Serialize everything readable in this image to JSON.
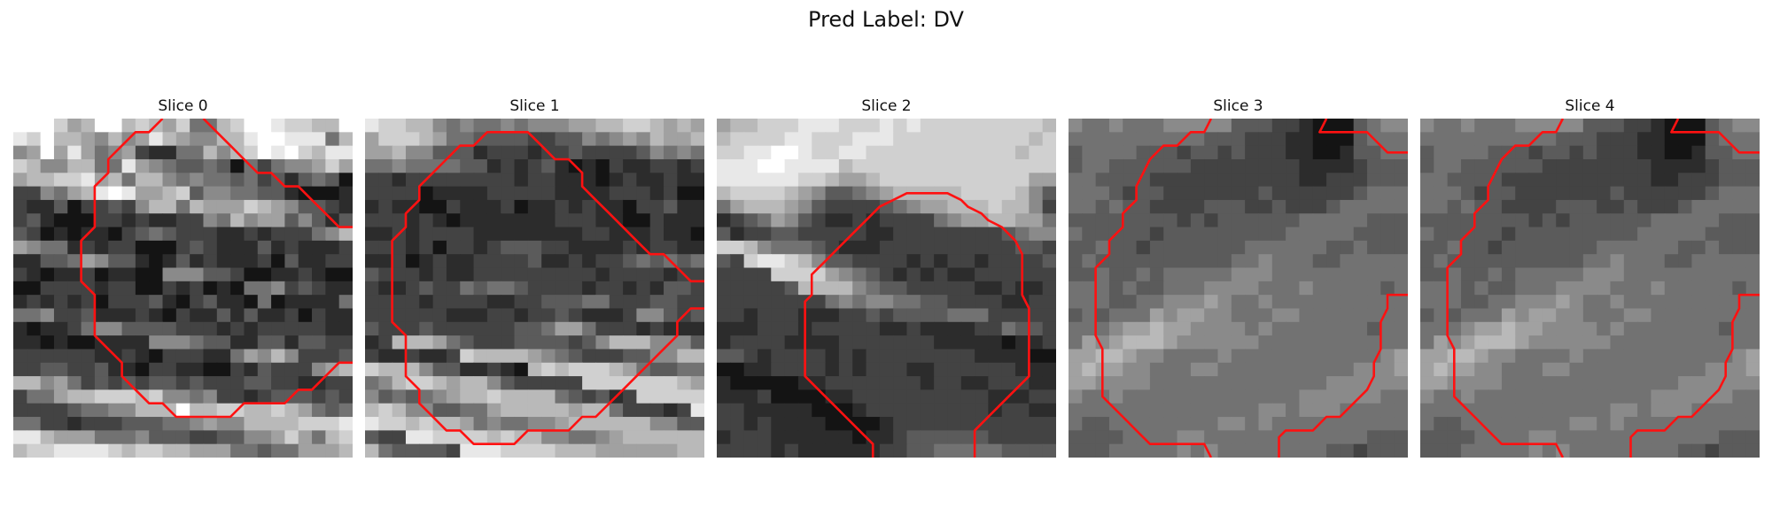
{
  "figure": {
    "title": "Pred Label: DV"
  },
  "contour_color": "#ff1111",
  "grid_size": 25,
  "panels": [
    {
      "title": "Slice 0",
      "contour": [
        [
          [
            10.5,
            -0.5
          ],
          [
            9.5,
            0.5
          ],
          [
            8.5,
            0.5
          ],
          [
            7.5,
            1.5
          ],
          [
            6.5,
            2.5
          ],
          [
            6.5,
            3.5
          ],
          [
            5.5,
            4.5
          ],
          [
            5.5,
            7.5
          ],
          [
            4.5,
            8.5
          ],
          [
            4.5,
            11.5
          ],
          [
            5.5,
            12.5
          ],
          [
            5.5,
            15.5
          ],
          [
            6.5,
            16.5
          ],
          [
            7.5,
            17.5
          ],
          [
            7.5,
            18.5
          ],
          [
            8.5,
            19.5
          ],
          [
            9.5,
            20.5
          ],
          [
            10.5,
            20.5
          ],
          [
            11.5,
            21.5
          ],
          [
            15.5,
            21.5
          ],
          [
            16.5,
            20.5
          ],
          [
            19.5,
            20.5
          ],
          [
            20.5,
            19.5
          ],
          [
            21.5,
            19.5
          ],
          [
            22.5,
            18.5
          ],
          [
            23.5,
            17.5
          ],
          [
            24.5,
            17.5
          ]
        ],
        [
          [
            13.5,
            -0.5
          ],
          [
            14.5,
            0.5
          ],
          [
            15.5,
            1.5
          ],
          [
            16.5,
            2.5
          ],
          [
            17.5,
            3.5
          ],
          [
            18.5,
            3.5
          ],
          [
            19.5,
            4.5
          ],
          [
            20.5,
            4.5
          ],
          [
            21.5,
            5.5
          ],
          [
            22.5,
            6.5
          ],
          [
            23.5,
            7.5
          ],
          [
            24.5,
            7.5
          ]
        ]
      ],
      "pixels": "LKKIGHKKHIHGIEEHIKLJIIHHKJIMHHGFHFGJHGFFHHJLLJJJEHFGKGJGEFGCBBEEHFHILJKIHJJIHFFHHEEJGFEDDEDAECEFFGIGGHHIIJGHEHHFEFEEDECDBDEDACCFEGHJKJGGHIDFFEEDDBAAABCBBDACCDCFHHEHGGGIHGFDDCBCDBAAACCBCBBCCFEHFGGDFDBDDCABABBACDEDCCCBBCBCCCEFHGFEEBCBCCAAACDCBBBDBCBBBCBBDDEGFDDBABDBCBBBCADBBCCCBABBCABBAAFFFDDCAABBCBAAAACCCCBCCAACBCABAEEFCDCBBBCBCBCACCCDBACDBBAEABBBBEEEFCCDBBBCBACBBDBDBBCACBBBABBCEFFDDDDCCCBCBCCCCCBBBBABAABBBBFFFEDDBBDDBDDCCCCCCCCBBCBACCCBBEGFHFCCCDCCDDCCDBBACCBBAACBDCCCFGHHHFGECDCDCDDCDCCCDDCCBBCCCEEGHHIIIHIFFEFCCBCDDDCDCCCCCDEEFFHHHKHHIIHHIHGEDEEECCBCCCDDDEEFGFFHHHHIIIJJJHGGGEEEFDDDCCDDFFGIGEHIHIIJJJJIHIIHHGGGEEDEEGGGHIHHHHJJKJJJJIHHHGHHGHGGEEGFGHHJHIHJJJJJJIIHIHHHIHGGFFFEGGHHHHIIHJJJJJJJJIIHHHHIHGFFEEGGHHIHHIHHIIKJIJJIIHIHHHIGGFEEFFGHGIIIIIHHHHIIIJIHHIHHIHGGFGFGEGGHHIJJJJJIIIHIIIHHHHHHGGFFGHGGGHIJIJJIIIIHHHIHHHHHHGFFFFGIHIHHJIIHIHHHHHHHGHGGHFHEFGHHHHGH"
    },
    {
      "title": "Slice 1",
      "contour": [
        [
          [
            24.5,
            11.5
          ],
          [
            23.5,
            11.5
          ],
          [
            22.5,
            10.5
          ],
          [
            21.5,
            9.5
          ],
          [
            20.5,
            9.5
          ],
          [
            19.5,
            8.5
          ],
          [
            18.5,
            7.5
          ],
          [
            17.5,
            6.5
          ],
          [
            16.5,
            5.5
          ],
          [
            15.5,
            4.5
          ],
          [
            15.5,
            3.5
          ],
          [
            14.5,
            2.5
          ],
          [
            13.5,
            2.5
          ],
          [
            12.5,
            1.5
          ],
          [
            11.5,
            0.5
          ],
          [
            8.5,
            0.5
          ],
          [
            7.5,
            1.5
          ],
          [
            6.5,
            1.5
          ],
          [
            5.5,
            2.5
          ],
          [
            4.5,
            3.5
          ],
          [
            3.5,
            4.5
          ],
          [
            3.5,
            5.5
          ],
          [
            2.5,
            6.5
          ],
          [
            2.5,
            7.5
          ],
          [
            1.5,
            8.5
          ],
          [
            1.5,
            14.5
          ],
          [
            2.5,
            15.5
          ],
          [
            2.5,
            18.5
          ],
          [
            3.5,
            19.5
          ],
          [
            3.5,
            20.5
          ],
          [
            4.5,
            21.5
          ],
          [
            5.5,
            22.5
          ],
          [
            6.5,
            22.5
          ],
          [
            7.5,
            23.5
          ],
          [
            10.5,
            23.5
          ],
          [
            11.5,
            22.5
          ],
          [
            14.5,
            22.5
          ],
          [
            15.5,
            21.5
          ],
          [
            16.5,
            21.5
          ],
          [
            17.5,
            20.5
          ],
          [
            18.5,
            19.5
          ],
          [
            19.5,
            18.5
          ],
          [
            20.5,
            17.5
          ],
          [
            21.5,
            16.5
          ],
          [
            22.5,
            15.5
          ],
          [
            22.5,
            14.5
          ],
          [
            23.5,
            13.5
          ],
          [
            24.5,
            13.5
          ]
        ]
      ],
      "pixels": "JIIHHFEFEEFEFFFGGHHIIHGHGGIIIHGEEDDDDCCDDFEFGFHGGHGGHFFDDDBCCCBCCDCCCCDFEFEEEFEEEEDDBCBCDBABACBBCCBCCCBCCCCCCCCBCCBBBABCBBCBBCCCCABBBBCCCCCBBBBCCCBCAABCBBAACBBBCABBCBCBBACCDBBCCCBCBABBBBBBBCCCBBAACBBBBBCBCCCCBBBBBBBBCCBBBCBBACCCBCACCBCDDDCCBBBBCBCCBBBBCABCBBCCCCDBBCBCCDEDEDEDCCCBCBBCCCCCCCCCBCCCCBCCCBBCDCCEDEEDCCCCBCCBCBDDCCCCCBCCCCBBCCDDDEECCCDDCCCCCCCCBBBCCBCCDCBBBCFFDCDDCCCDCCCCCCDDEGGECCCBCBBBBCHHHGEDCCCDDDDCDFHHHFFFDCBBCBBCIHHHHGFEDCCCDDFFHHIHHHFDDBBCBAHIHIIIHGEDDEEEFHIIHGHHFDCCCCCIIIIIIIHGFDEDEFGHHIHHHHEDCDBCIIIIIHIHFFDDEEGHHHHHGHHECCCBCJJIIHIHHGEFEEFFGHHHHHHFFDDDCCJJIIIIHIHHFFEEFGHHHHHHHEDDDDCJJJIIIIHHHGGGGGGHHHHHHGEEDDEDKJJJIIIIIHHHHHHHHGGFFFEEEEEEEKKJJJIJIJIIIIHHHHGGFFFEEEEFFFJKKKJJJIIIIHHHHHHHHHHGFFFGHHHJKKJJJJJJJJJJIIIIIIIIIHHHHHHHH"
    },
    {
      "title": "Slice 2",
      "contour": [
        [
          [
            11.0,
            24.5
          ],
          [
            11.0,
            23.5
          ],
          [
            10.0,
            22.5
          ],
          [
            9.0,
            21.5
          ],
          [
            8.0,
            20.5
          ],
          [
            7.0,
            19.5
          ],
          [
            6.0,
            18.5
          ],
          [
            6.0,
            13.5
          ],
          [
            6.0,
            13.0
          ],
          [
            6.5,
            12.5
          ],
          [
            6.5,
            11.0
          ],
          [
            7.5,
            10.0
          ],
          [
            8.5,
            9.0
          ],
          [
            9.5,
            8.0
          ],
          [
            10.5,
            7.0
          ],
          [
            11.5,
            6.0
          ],
          [
            12.5,
            5.5
          ],
          [
            13.5,
            5.0
          ],
          [
            14.5,
            5.0
          ],
          [
            15.5,
            5.0
          ],
          [
            16.5,
            5.0
          ],
          [
            17.5,
            5.5
          ],
          [
            18.0,
            6.0
          ],
          [
            19.0,
            6.5
          ],
          [
            19.5,
            7.0
          ],
          [
            20.5,
            7.5
          ],
          [
            21.5,
            8.5
          ],
          [
            22.0,
            9.5
          ],
          [
            22.0,
            12.5
          ],
          [
            22.5,
            13.5
          ],
          [
            22.5,
            18.5
          ],
          [
            21.5,
            19.5
          ],
          [
            20.5,
            20.5
          ],
          [
            19.5,
            21.5
          ],
          [
            18.5,
            22.5
          ],
          [
            18.5,
            24.5
          ]
        ]
      ],
      "pixels": "GHHIIIJJJIIIJIJIIIIIIIIIHHIIIIJJIIIJJJIIIIIIIIIIHIIIJJKKJIIJJIIIIIIIIIIIHIIJJJKKJJJJHIIIIIIIIIIIIIIIJJJJJJIIHGGHIIIIIIIIIIIGGHIIIIHGFDDEFGHHHHHIIIIHFDEGHHHGFDCCCCDEFGGHHHIHHFCBCDEGFDCBBCBCCCCEFGGHHGGEDBCCDDCCCCCBBCCCCCCCCDEFFIIHFEEEDCBBBCCCCCCCCCCDDCDCIJJIHFDDCCCCBCBCCBCCCCDCCCCIIIIGFEDCBCBCBBCCCCCCCCCCCDHHHHFEDDCCCCCBBCBBCCCCCCCCCEFEFFEEDDCCCCBBCCCCBCCCBBBCCDCDDDDEEECCCCCBBBCCCBCCCCCBBCBBBBCCEDDCBCCCCBBBBCCCCCCCBBBBBABBCDDCBCCCCBCBCCCCCCCCBBBBAAAABBCCCCBCBCCCBBCCCCCCBBBBAAAAABBCCCCCCCBCCBBCCCBBBBBCAAAABBCCCCCCCCCCBBBCCCCBBBBBAAABCCCCCCCCCBCCBBCCBCBBBBAAAABCCCCCCCCCCCCBCCCBBBBBBABBCDDDDDDCCCCCCCCCBCBBBBBBCCDDEEEEEDDDDDDCCCBBBBBBBDEEEEEEEEEEEEEEDDDCCCC"
    },
    {
      "title": "Slice 3",
      "contour": [
        [
          [
            15.0,
            24.5
          ],
          [
            15.0,
            23.0
          ],
          [
            15.5,
            22.5
          ],
          [
            17.5,
            22.5
          ],
          [
            18.5,
            21.5
          ],
          [
            19.5,
            21.5
          ],
          [
            20.5,
            20.5
          ],
          [
            21.5,
            19.5
          ],
          [
            22.0,
            18.5
          ],
          [
            22.0,
            17.5
          ],
          [
            22.5,
            16.5
          ],
          [
            22.5,
            14.5
          ],
          [
            23.0,
            13.5
          ],
          [
            23.0,
            12.5
          ],
          [
            24.5,
            12.5
          ]
        ],
        [
          [
            10.0,
            -0.5
          ],
          [
            9.5,
            0.5
          ],
          [
            8.5,
            0.5
          ],
          [
            7.5,
            1.5
          ],
          [
            6.5,
            1.5
          ],
          [
            5.5,
            2.5
          ],
          [
            5.0,
            3.5
          ],
          [
            4.5,
            4.5
          ],
          [
            4.5,
            5.5
          ],
          [
            3.5,
            6.5
          ],
          [
            3.5,
            7.5
          ],
          [
            2.5,
            8.5
          ],
          [
            2.5,
            9.5
          ],
          [
            1.5,
            10.5
          ],
          [
            1.5,
            15.5
          ],
          [
            2.0,
            16.5
          ],
          [
            2.0,
            20.0
          ],
          [
            3.5,
            21.5
          ],
          [
            4.5,
            22.5
          ],
          [
            5.5,
            23.5
          ],
          [
            9.5,
            23.5
          ],
          [
            10.0,
            24.5
          ]
        ],
        [
          [
            18.5,
            -0.5
          ],
          [
            18.0,
            0.5
          ],
          [
            21.5,
            0.5
          ],
          [
            22.0,
            1.0
          ],
          [
            23.0,
            2.0
          ],
          [
            24.5,
            2.0
          ]
        ]
      ],
      "pixels": "FEEFEEEFFFFFDDDCCBAAADEFFEEEEEEEEEEDDDCCCBBAAADEEEDEEEEDDDCDDCDCCCBBAABDDEEDEEDDDDDDCCCCCCCCBBBBCDDDEEDDDDCCCCCCCCCCCBBCCCDDDEEEDCDDCCCCCCCDCCCCCCDEEEEEDEDDCCCCDDDCCDCCCDEEEEEDDDDDDDDCDCDDDDDDEEEEEDDDEDDDDDCDDDDDDDDDEEEEEDDDDDDEDDCDDDDDDDEEEEEEDDEDDDDEDDDDDDDDDDEEFEEEDDEEEEEDDEDDEDEEEEEFFFEEEEEEEEEEEEEDEDDEEEFFFFEEEFEEEEEDEEEEDDEEFFFGFEEFEEEEEEEEEEDEDEEEGFGGFFEEEFFEEEEEEEEEEEFGGHGGFFFFEFEEEEEEEDEEEGFGHHHGFFFFFFEEEEEEEEEEEGGHHGFFEEEEFEEEEEEEEEEEFGGHGGFFEEEFFEEEEEEEEEEFFFGGGFFFFEEEEEEEEEEEEEFFFFFFFEEFEEEEEEEEEEEEEFFFFFFEEEEEEEEEEEEEEEEFFEFFFEEEEEEDDEEEEEEEEFFEFEEEEEEEEEEDDDDEEEEFFEEEEEEEEEEEEDDDDDDEEEEEFEFEEEEEEEEDDCDDDEEEEEEEEEEEEEEEDDDCCCDDEEEEE"
    },
    {
      "title": "Slice 4",
      "contour": [
        [
          [
            15.0,
            24.5
          ],
          [
            15.0,
            23.0
          ],
          [
            15.5,
            22.5
          ],
          [
            17.5,
            22.5
          ],
          [
            18.5,
            21.5
          ],
          [
            19.5,
            21.5
          ],
          [
            20.5,
            20.5
          ],
          [
            21.5,
            19.5
          ],
          [
            22.0,
            18.5
          ],
          [
            22.0,
            17.5
          ],
          [
            22.5,
            16.5
          ],
          [
            22.5,
            14.5
          ],
          [
            23.0,
            13.5
          ],
          [
            23.0,
            12.5
          ],
          [
            24.5,
            12.5
          ]
        ],
        [
          [
            10.0,
            -0.5
          ],
          [
            9.5,
            0.5
          ],
          [
            8.5,
            0.5
          ],
          [
            7.5,
            1.5
          ],
          [
            6.5,
            1.5
          ],
          [
            5.5,
            2.5
          ],
          [
            5.0,
            3.5
          ],
          [
            4.5,
            4.5
          ],
          [
            4.5,
            5.5
          ],
          [
            3.5,
            6.5
          ],
          [
            3.5,
            7.5
          ],
          [
            2.5,
            8.5
          ],
          [
            2.5,
            9.5
          ],
          [
            1.5,
            10.5
          ],
          [
            1.5,
            15.5
          ],
          [
            2.0,
            16.5
          ],
          [
            2.0,
            20.0
          ],
          [
            3.5,
            21.5
          ],
          [
            4.5,
            22.5
          ],
          [
            5.5,
            23.5
          ],
          [
            9.5,
            23.5
          ],
          [
            10.0,
            24.5
          ]
        ],
        [
          [
            18.5,
            -0.5
          ],
          [
            18.0,
            0.5
          ],
          [
            21.5,
            0.5
          ],
          [
            22.0,
            1.0
          ],
          [
            23.0,
            2.0
          ],
          [
            24.5,
            2.0
          ]
        ]
      ],
      "pixels": "FEEFEEEFFFFFDDDCCBAAADEFFEEEEEEEEEEDDDCCCBBAAADEEEDEEEEDDDCDDCDCCCBBAABDDEEDEEDDDDDDCCCCCCCCBBBBCDDDEEDDDDCCCCCCCCCCCBBCCCDDDEEEDCDDCCCCCCCDCCCCCCDEEEEEDEDDCCCCDDDCCDCCCDEEEEEDDDDDDDDCDCDDDDDDEEEEEDDDEDDDDDCDDDDDDDDDEEEEEDDDDDDEDDCDDDDDDDEEEEEEDDEDDDDEDDDDDDDDDDEEFEEEDDEEEEEDDEDDEDEEEEEFFFEEEEEEEEEEEEEDEDDEEEFFFFEEEFEEEEEDEEEEDDEEFFFGFEEFEEEEEEEEEEDEDEEEGFGGFFEEEFFEEEEEEEEEEEFGGHGGFFFFEFEEEEEEEDEEEGFGHHHGFFFFFFEEEEEEEEEEEGGHHGFFEEEEFEEEEEEEEEEEFGGHGGFFEEEFFEEEEEEEEEEFFFGGGFFFFEEEEEEEEEEEEEFFFFFFFEEFEEEEEEEEEEEEEFFFFFFEEEEEEEEEEEEEEEEFFEFFFEEEEEEDDEEEEEEEEFFEFEEEEEEEEEEDDDDEEEEFFEEEEEEEEEEEEDDDDDDEEEEEFEFEEEEEEEEDDCDDDEEEEEEEEEEEEEEEDDDCCCDDEEEEE"
    }
  ]
}
